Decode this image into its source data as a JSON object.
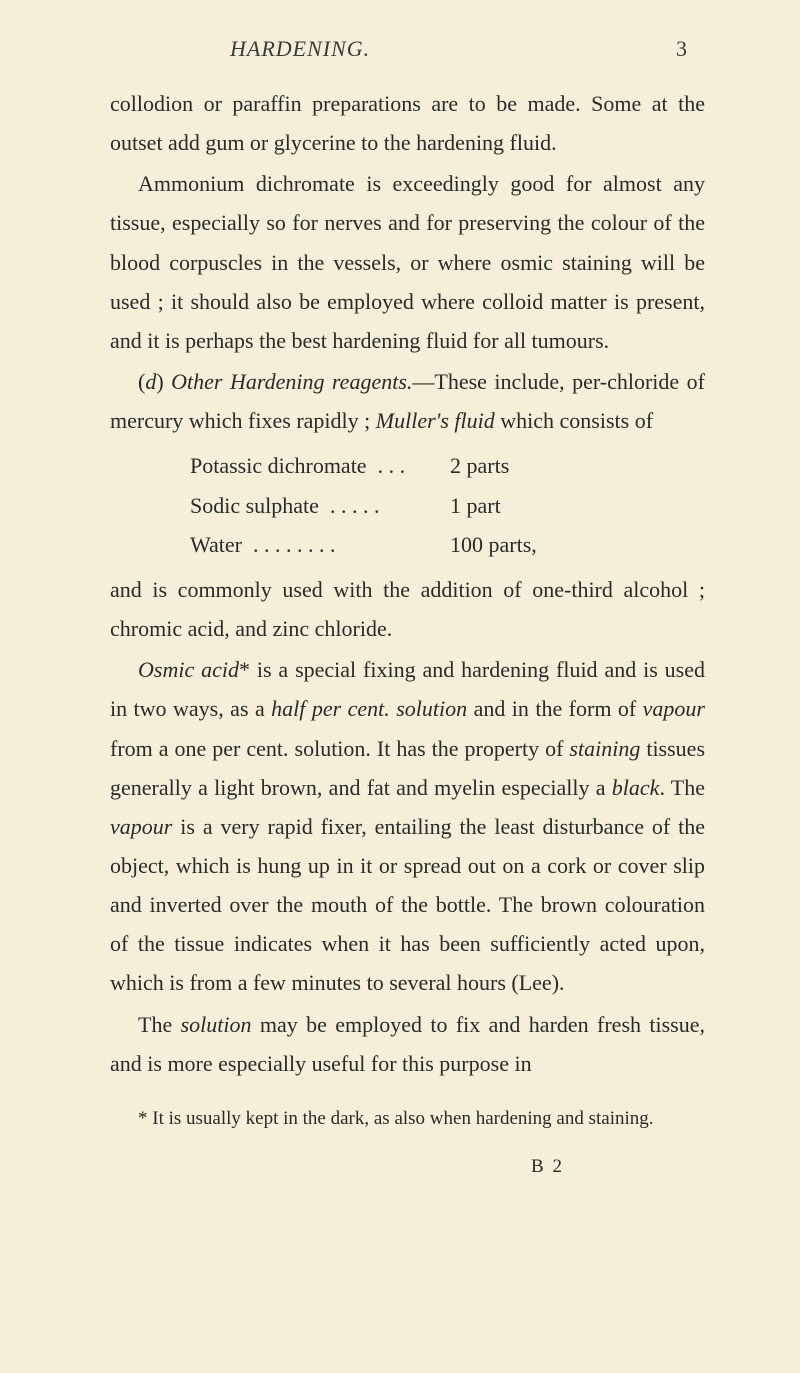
{
  "header": {
    "running_head": "HARDENING.",
    "page_number": "3"
  },
  "paragraphs": {
    "p1": "collodion or paraffin preparations are to be made. Some at the outset add gum or glycerine to the hardening fluid.",
    "p2": "Ammonium dichromate is exceedingly good for almost any tissue, especially so for nerves and for preserving the colour of the blood corpuscles in the vessels, or where osmic staining will be used ; it should also be employed where colloid matter is present, and it is perhaps the best hardening fluid for all tumours.",
    "p3_pre": "(",
    "p3_d": "d",
    "p3_mid1": ") ",
    "p3_ital1": "Other Hardening reagents.",
    "p3_mid2": "—These include, per-chloride of mercury which fixes rapidly ; ",
    "p3_ital2": "Muller's fluid",
    "p3_end": " which consists of",
    "recipe": {
      "r1_name": "Potassic dichromate",
      "r1_dots": ". . .",
      "r1_amt": "2 parts",
      "r2_name": "Sodic sulphate",
      "r2_dots": ". . . . .",
      "r2_amt": "1 part",
      "r3_name": "Water",
      "r3_dots": ". . . . . . . .",
      "r3_amt": "100 parts,"
    },
    "p4": "and is commonly used with the addition of one-third alcohol ; chromic acid, and zinc chloride.",
    "p5_ital1": "Osmic acid",
    "p5_a": "* is a special fixing and hardening fluid and is used in two ways, as a ",
    "p5_ital2": "half per cent. solution",
    "p5_b": " and in the form of ",
    "p5_ital3": "vapour",
    "p5_c": " from a one per cent. solution. It has the property of ",
    "p5_ital4": "staining",
    "p5_d": " tissues generally a light brown, and fat and myelin especially a ",
    "p5_ital5": "black",
    "p5_e": ". The ",
    "p5_ital6": "vapour",
    "p5_f": " is a very rapid fixer, entailing the least disturbance of the object, which is hung up in it or spread out on a cork or cover slip and inverted over the mouth of the bottle. The brown colouration of the tissue indicates when it has been sufficiently acted upon, which is from a few minutes to several hours (Lee).",
    "p6_a": "The ",
    "p6_ital1": "solution",
    "p6_b": " may be employed to fix and harden fresh tissue, and is more especially useful for this purpose in"
  },
  "footnote": "* It is usually kept in the dark, as also when hardening and staining.",
  "signature": "B 2",
  "colors": {
    "background": "#f5eed8",
    "text": "#2a2a2a"
  },
  "typography": {
    "body_fontsize": 22,
    "body_lineheight": 1.78,
    "footnote_fontsize": 19,
    "font_family": "Georgia, Times New Roman, serif"
  }
}
